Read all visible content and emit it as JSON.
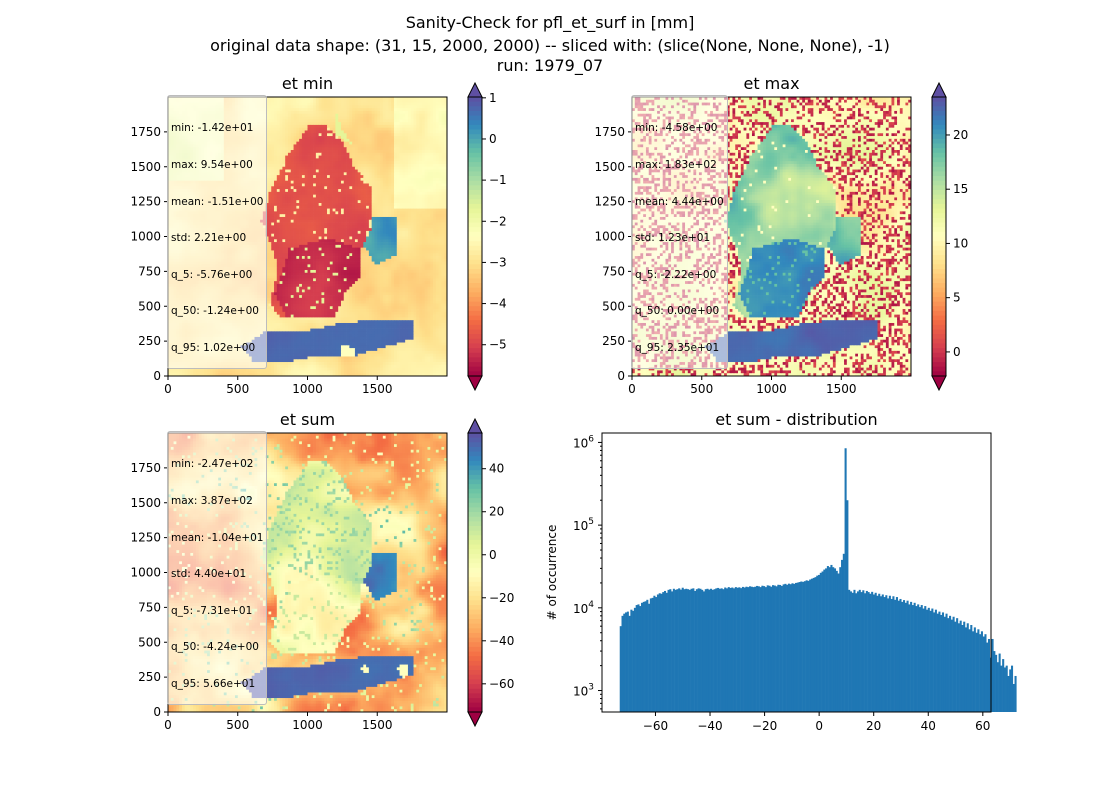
{
  "figure": {
    "title_lines": [
      "Sanity-Check for pfl_et_surf in [mm]",
      "original data shape: (31, 15, 2000, 2000) -- sliced with: (slice(None, None, None), -1)",
      "run: 1979_07"
    ]
  },
  "colors": {
    "spectral": [
      "#9e0142",
      "#d53e4f",
      "#f46d43",
      "#fdae61",
      "#fee08b",
      "#ffffbf",
      "#e6f598",
      "#abdda4",
      "#66c2a5",
      "#3288bd",
      "#5e4fa2"
    ],
    "histogram_bar": "#1f77b4"
  },
  "chart_data": [
    {
      "type": "heatmap",
      "title": "et min",
      "xlim": [
        0,
        2000
      ],
      "ylim": [
        0,
        2000
      ],
      "xticks": [
        "0",
        "500",
        "1000",
        "1500"
      ],
      "yticks": [
        "0",
        "250",
        "500",
        "750",
        "1000",
        "1250",
        "1500",
        "1750"
      ],
      "colorbar": {
        "min": -5.76,
        "max": 1.02,
        "extend": "both",
        "ticks": [
          {
            "v": 1,
            "label": "1"
          },
          {
            "v": 0,
            "label": "0"
          },
          {
            "v": -1,
            "label": "−1"
          },
          {
            "v": -2,
            "label": "−2"
          },
          {
            "v": -3,
            "label": "−3"
          },
          {
            "v": -4,
            "label": "−4"
          },
          {
            "v": -5,
            "label": "−5"
          }
        ]
      },
      "stats": [
        "min: -1.42e+01",
        "max: 9.54e+00",
        "mean: -1.51e+00",
        "std: 2.21e+00",
        "q_5: -5.76e+00",
        "q_50: -1.24e+00",
        "q_95: 1.02e+00"
      ]
    },
    {
      "type": "heatmap",
      "title": "et max",
      "xlim": [
        0,
        2000
      ],
      "ylim": [
        0,
        2000
      ],
      "xticks": [
        "0",
        "500",
        "1000",
        "1500"
      ],
      "yticks": [
        "0",
        "250",
        "500",
        "750",
        "1000",
        "1250",
        "1500",
        "1750"
      ],
      "colorbar": {
        "min": -2.22,
        "max": 23.5,
        "extend": "both",
        "ticks": [
          {
            "v": 20,
            "label": "20"
          },
          {
            "v": 15,
            "label": "15"
          },
          {
            "v": 10,
            "label": "10"
          },
          {
            "v": 5,
            "label": "5"
          },
          {
            "v": 0,
            "label": "0"
          }
        ]
      },
      "stats": [
        "min: -4.58e+00",
        "max: 1.83e+02",
        "mean: 4.44e+00",
        "std: 1.23e+01",
        "q_5: -2.22e+00",
        "q_50: 0.00e+00",
        "q_95: 2.35e+01"
      ]
    },
    {
      "type": "heatmap",
      "title": "et sum",
      "xlim": [
        0,
        2000
      ],
      "ylim": [
        0,
        2000
      ],
      "xticks": [
        "0",
        "500",
        "1000",
        "1500"
      ],
      "yticks": [
        "0",
        "250",
        "500",
        "750",
        "1000",
        "1250",
        "1500",
        "1750"
      ],
      "colorbar": {
        "min": -73.1,
        "max": 56.6,
        "extend": "both",
        "ticks": [
          {
            "v": 40,
            "label": "40"
          },
          {
            "v": 20,
            "label": "20"
          },
          {
            "v": 0,
            "label": "0"
          },
          {
            "v": -20,
            "label": "−20"
          },
          {
            "v": -40,
            "label": "−40"
          },
          {
            "v": -60,
            "label": "−60"
          }
        ]
      },
      "stats": [
        "min: -2.47e+02",
        "max: 3.87e+02",
        "mean: -1.04e+01",
        "std: 4.40e+01",
        "q_5: -7.31e+01",
        "q_50: -4.24e+00",
        "q_95: 5.66e+01"
      ]
    },
    {
      "type": "bar",
      "title": "et sum - distribution",
      "xlabel": "",
      "ylabel": "# of occurrence",
      "y_scale": "log",
      "xlim": [
        -79.6,
        63.0
      ],
      "ylim": [
        550,
        1300000
      ],
      "xticks": [
        {
          "v": -60,
          "label": "−60"
        },
        {
          "v": -40,
          "label": "−40"
        },
        {
          "v": -20,
          "label": "−20"
        },
        {
          "v": 0,
          "label": "0"
        },
        {
          "v": 20,
          "label": "20"
        },
        {
          "v": 40,
          "label": "40"
        },
        {
          "v": 60,
          "label": "60"
        }
      ],
      "yticks": [
        {
          "v": 1000,
          "base": "10",
          "exp": "3"
        },
        {
          "v": 10000,
          "base": "10",
          "exp": "4"
        },
        {
          "v": 100000,
          "base": "10",
          "exp": "5"
        },
        {
          "v": 1000000,
          "base": "10",
          "exp": "6"
        }
      ],
      "bins": {
        "start": -73.1,
        "width": 0.649
      },
      "values": [
        6000,
        8000,
        8500,
        8800,
        9000,
        8000,
        9500,
        9200,
        10000,
        10800,
        11000,
        10500,
        11500,
        11800,
        12000,
        12500,
        11200,
        13000,
        13200,
        14000,
        13500,
        14500,
        15000,
        14800,
        15500,
        16000,
        15200,
        16500,
        16800,
        15800,
        17000,
        16500,
        16800,
        17200,
        16600,
        17500,
        16800,
        17000,
        16800,
        16500,
        17000,
        17200,
        16000,
        16800,
        17200,
        17000,
        16500,
        15800,
        16800,
        17000,
        16600,
        17000,
        16500,
        16800,
        17200,
        17400,
        17000,
        17200,
        16800,
        17600,
        17200,
        17800,
        17400,
        17600,
        17200,
        17800,
        17500,
        17700,
        17300,
        17900,
        17600,
        18000,
        17800,
        18200,
        18000,
        17800,
        18000,
        18400,
        18200,
        17800,
        18500,
        18300,
        17800,
        18700,
        18500,
        18000,
        18800,
        18600,
        18200,
        19000,
        18900,
        18400,
        19200,
        19500,
        19000,
        19600,
        19300,
        19800,
        19500,
        20000,
        20200,
        20500,
        20800,
        20600,
        21000,
        21500,
        21200,
        22000,
        22500,
        23000,
        23500,
        24500,
        25000,
        26500,
        27500,
        29000,
        30000,
        32000,
        31000,
        33000,
        31000,
        30000,
        28000,
        26000,
        31000,
        38000,
        45000,
        850000,
        200000,
        16500,
        15800,
        15200,
        16500,
        15000,
        15800,
        16500,
        15500,
        16300,
        15000,
        16000,
        15500,
        14800,
        15600,
        14500,
        15200,
        14000,
        14800,
        13800,
        14500,
        13500,
        14200,
        13000,
        14000,
        12800,
        13800,
        12500,
        13500,
        12200,
        12800,
        11800,
        12400,
        11500,
        12200,
        11000,
        11800,
        10800,
        11500,
        10500,
        11000,
        10200,
        10800,
        9800,
        10500,
        9500,
        10000,
        9200,
        9800,
        8800,
        9500,
        8500,
        9000,
        8200,
        8800,
        7800,
        8500,
        7500,
        8000,
        7200,
        7800,
        6800,
        7500,
        6500,
        7000,
        6200,
        6800,
        5800,
        6500,
        5500,
        6200,
        5200,
        5800,
        5000,
        5500,
        4800,
        5200,
        4500,
        4800,
        3800,
        4200,
        2500,
        4200,
        3000,
        2700,
        2200,
        2800,
        2000,
        2400,
        1900,
        2000,
        1500,
        1800,
        2000,
        1200,
        1500
      ]
    }
  ]
}
